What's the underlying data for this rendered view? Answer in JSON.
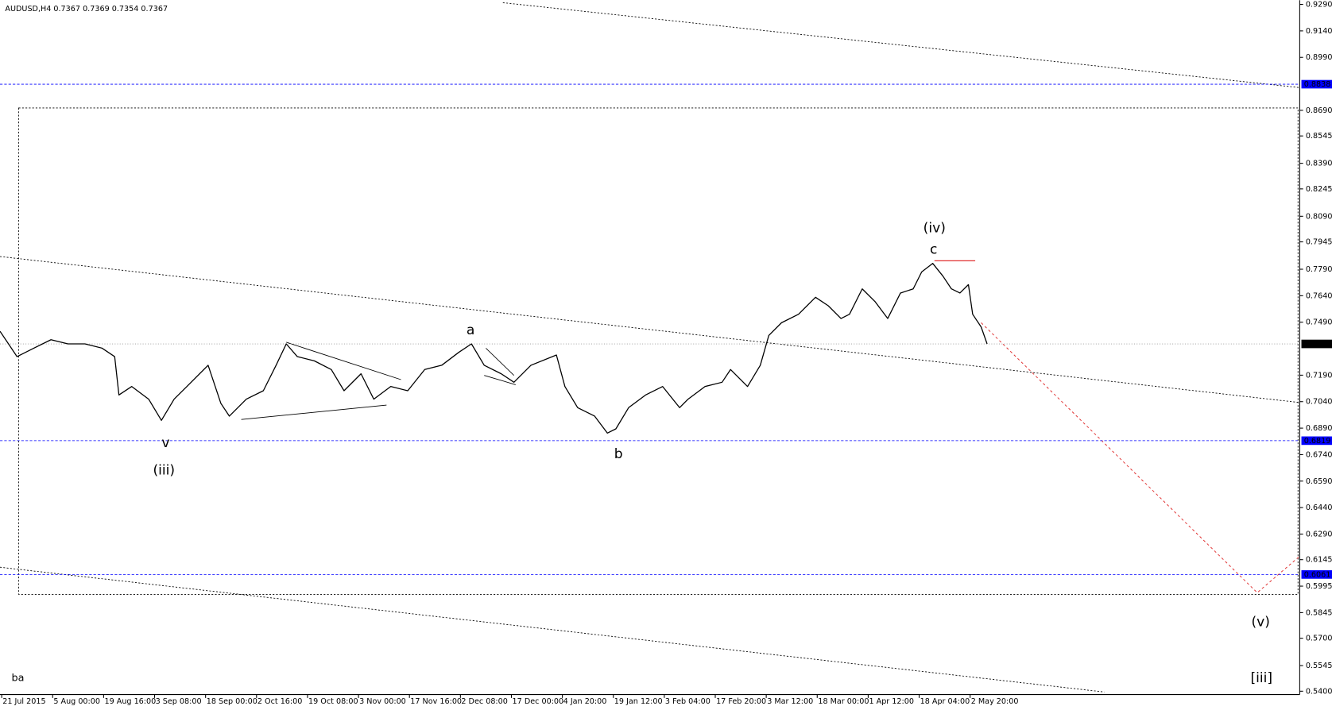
{
  "chart_data": {
    "type": "line",
    "title": "AUDUSD,H4  0.7367 0.7369 0.7354 0.7367",
    "xlim": [
      0,
      1530
    ],
    "ylim": [
      0.5381,
      0.9314
    ],
    "x": [
      0,
      10,
      20,
      40,
      60,
      80,
      100,
      120,
      135,
      140,
      155,
      175,
      190,
      205,
      220,
      245,
      260,
      270,
      290,
      310,
      325,
      337,
      350,
      370,
      390,
      405,
      425,
      440,
      460,
      480,
      500,
      520,
      540,
      555,
      570,
      590,
      605,
      625,
      655,
      665,
      680,
      700,
      715,
      725,
      740,
      760,
      780,
      800,
      810,
      830,
      850,
      860,
      880,
      895,
      905,
      920,
      940,
      960,
      975,
      990,
      1000,
      1015,
      1030,
      1045,
      1060,
      1075,
      1085,
      1098,
      1110,
      1120,
      1130,
      1140,
      1145,
      1155,
      1162
    ],
    "series": [
      {
        "name": "AUDUSD",
        "color": "#000000",
        "values": [
          0.7439,
          0.7367,
          0.7295,
          0.7343,
          0.7391,
          0.7367,
          0.7367,
          0.7343,
          0.7295,
          0.7078,
          0.7126,
          0.7054,
          0.6934,
          0.7054,
          0.7126,
          0.7246,
          0.703,
          0.6958,
          0.7054,
          0.7102,
          0.7246,
          0.7367,
          0.7295,
          0.7271,
          0.7222,
          0.7102,
          0.7198,
          0.7054,
          0.7126,
          0.7102,
          0.7222,
          0.7246,
          0.7319,
          0.7367,
          0.7246,
          0.7198,
          0.715,
          0.7246,
          0.7304,
          0.7126,
          0.7006,
          0.6958,
          0.6862,
          0.6886,
          0.7006,
          0.7078,
          0.7126,
          0.7006,
          0.7054,
          0.7126,
          0.715,
          0.7222,
          0.7126,
          0.7246,
          0.7415,
          0.7487,
          0.7535,
          0.7631,
          0.7583,
          0.7511,
          0.7535,
          0.7679,
          0.7607,
          0.7511,
          0.7655,
          0.7679,
          0.7775,
          0.7823,
          0.7751,
          0.7679,
          0.7655,
          0.7703,
          0.7535,
          0.7463,
          0.7367
        ]
      }
    ],
    "yticks": [
      {
        "value": 0.929,
        "label": "0.9290"
      },
      {
        "value": 0.914,
        "label": "0.9140"
      },
      {
        "value": 0.899,
        "label": "0.8990"
      },
      {
        "value": 0.869,
        "label": "0.8690"
      },
      {
        "value": 0.8545,
        "label": "0.8545"
      },
      {
        "value": 0.839,
        "label": "0.8390"
      },
      {
        "value": 0.8245,
        "label": "0.8245"
      },
      {
        "value": 0.809,
        "label": "0.8090"
      },
      {
        "value": 0.7945,
        "label": "0.7945"
      },
      {
        "value": 0.779,
        "label": "0.7790"
      },
      {
        "value": 0.764,
        "label": "0.7640"
      },
      {
        "value": 0.749,
        "label": "0.7490"
      },
      {
        "value": 0.719,
        "label": "0.7190"
      },
      {
        "value": 0.704,
        "label": "0.7040"
      },
      {
        "value": 0.689,
        "label": "0.6890"
      },
      {
        "value": 0.674,
        "label": "0.6740"
      },
      {
        "value": 0.659,
        "label": "0.6590"
      },
      {
        "value": 0.644,
        "label": "0.6440"
      },
      {
        "value": 0.629,
        "label": "0.6290"
      },
      {
        "value": 0.6145,
        "label": "0.6145"
      },
      {
        "value": 0.5995,
        "label": "0.5995"
      },
      {
        "value": 0.5845,
        "label": "0.5845"
      },
      {
        "value": 0.57,
        "label": "0.5700"
      },
      {
        "value": 0.5545,
        "label": "0.5545"
      },
      {
        "value": 0.54,
        "label": "0.5400"
      }
    ],
    "xticks": [
      {
        "value": 2,
        "label": "21 Jul 2015"
      },
      {
        "value": 62,
        "label": "5 Aug 00:00"
      },
      {
        "value": 122,
        "label": "19 Aug 16:00"
      },
      {
        "value": 182,
        "label": "3 Sep 08:00"
      },
      {
        "value": 242,
        "label": "18 Sep 00:00"
      },
      {
        "value": 302,
        "label": "2 Oct 16:00"
      },
      {
        "value": 362,
        "label": "19 Oct 08:00"
      },
      {
        "value": 422,
        "label": "3 Nov 00:00"
      },
      {
        "value": 482,
        "label": "17 Nov 16:00"
      },
      {
        "value": 542,
        "label": "2 Dec 08:00"
      },
      {
        "value": 602,
        "label": "17 Dec 00:00"
      },
      {
        "value": 662,
        "label": "4 Jan 20:00"
      },
      {
        "value": 722,
        "label": "19 Jan 12:00"
      },
      {
        "value": 782,
        "label": "3 Feb 04:00"
      },
      {
        "value": 842,
        "label": "17 Feb 20:00"
      },
      {
        "value": 902,
        "label": "3 Mar 12:00"
      },
      {
        "value": 962,
        "label": "18 Mar 00:00"
      },
      {
        "value": 1022,
        "label": "1 Apr 12:00"
      },
      {
        "value": 1082,
        "label": "18 Apr 04:00"
      },
      {
        "value": 1142,
        "label": "2 May 20:00"
      }
    ],
    "hlines": [
      {
        "value": 0.8838,
        "label": "0.8838",
        "color": "#0000ff"
      },
      {
        "value": 0.7367,
        "label": "0.7367",
        "color": "#000000"
      },
      {
        "value": 0.6819,
        "label": "0.6819",
        "color": "#0000ff"
      },
      {
        "value": 0.6061,
        "label": "0.6061",
        "color": "#0000ff"
      }
    ],
    "annotations": [
      {
        "text": "v",
        "color": "#0000ff"
      },
      {
        "text": "(iii)",
        "color": "#2a8a2a"
      },
      {
        "text": "a",
        "color": "#0000ff"
      },
      {
        "text": "b",
        "color": "#0000ff"
      },
      {
        "text": "c",
        "color": "#0000ff"
      },
      {
        "text": "(iv)",
        "color": "#2a8a2a"
      },
      {
        "text": "(v)",
        "color": "#2a8a2a"
      },
      {
        "text": "[iii]",
        "color": "#cc0000"
      },
      {
        "text": "ba",
        "color": "#000000"
      }
    ]
  }
}
